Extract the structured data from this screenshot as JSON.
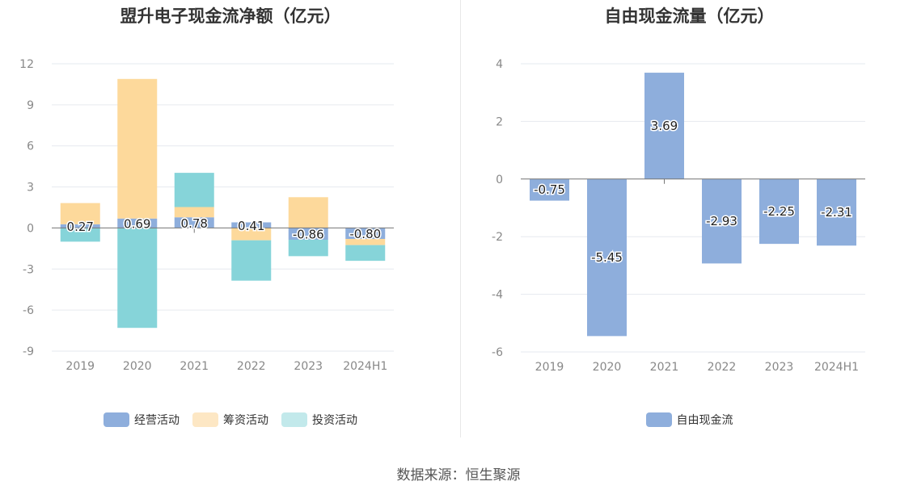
{
  "source_text": "数据来源：恒生聚源",
  "chart_data": [
    {
      "type": "bar",
      "stacked": true,
      "title": "盟升电子现金流净额（亿元）",
      "categories": [
        "2019",
        "2020",
        "2021",
        "2022",
        "2023",
        "2024H1"
      ],
      "ylim": [
        -9,
        12
      ],
      "yticks": [
        12,
        9,
        6,
        3,
        0,
        -3,
        -6,
        -9
      ],
      "grid": true,
      "legend_position": "bottom",
      "series": [
        {
          "name": "经营活动",
          "color": "#8eaedc",
          "values": [
            0.27,
            0.69,
            0.78,
            0.41,
            -0.86,
            -0.8
          ]
        },
        {
          "name": "筹资活动",
          "color": "#fdd99b",
          "values": [
            1.55,
            10.2,
            0.75,
            -0.9,
            2.25,
            -0.45
          ]
        },
        {
          "name": "投资活动",
          "color": "#86d4d9",
          "values": [
            -1.0,
            -7.3,
            2.5,
            -2.95,
            -1.2,
            -1.15
          ]
        }
      ],
      "data_labels": [
        "0.27",
        "0.69",
        "0.78",
        "0.41",
        "-0.86",
        "-0.80"
      ]
    },
    {
      "type": "bar",
      "title": "自由现金流量（亿元）",
      "categories": [
        "2019",
        "2020",
        "2021",
        "2022",
        "2023",
        "2024H1"
      ],
      "ylim": [
        -6,
        4
      ],
      "yticks": [
        4,
        2,
        0,
        -2,
        -4,
        -6
      ],
      "grid": true,
      "legend_position": "bottom",
      "series": [
        {
          "name": "自由现金流",
          "color": "#8eaedc",
          "values": [
            -0.75,
            -5.45,
            3.69,
            -2.93,
            -2.25,
            -2.31
          ]
        }
      ],
      "data_labels": [
        "-0.75",
        "-5.45",
        "3.69",
        "-2.93",
        "-2.25",
        "-2.31"
      ]
    }
  ]
}
